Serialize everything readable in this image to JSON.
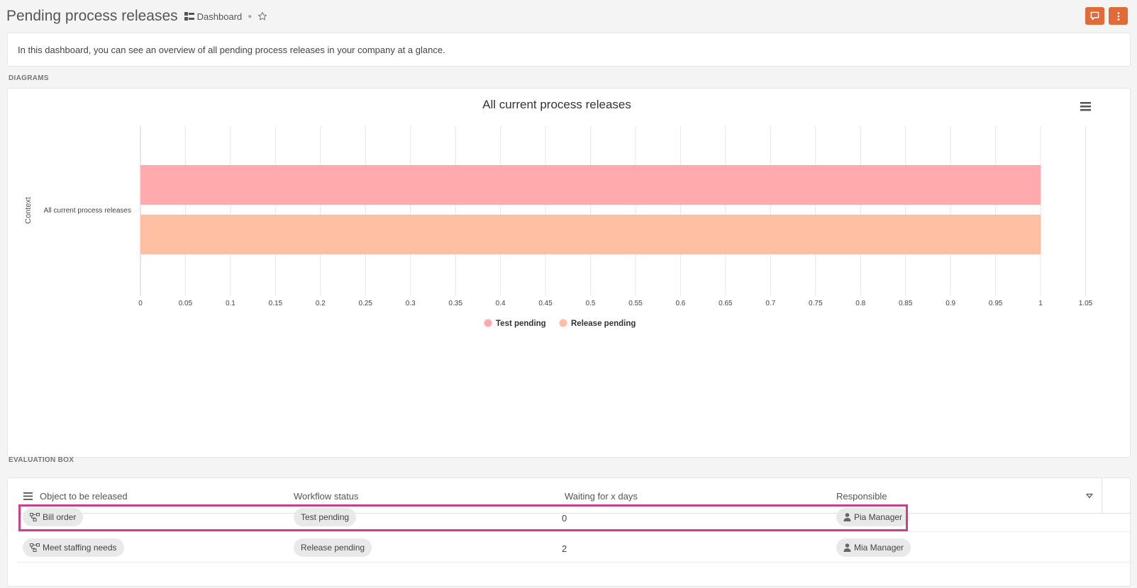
{
  "header": {
    "title": "Pending process releases",
    "breadcrumb_label": "Dashboard"
  },
  "description": "In this dashboard, you can see an overview of all pending process releases in your company at a glance.",
  "sections": {
    "diagrams": "DIAGRAMS",
    "evaluation": "EVALUATION BOX"
  },
  "chart_data": {
    "type": "bar",
    "orientation": "horizontal",
    "title": "All current process releases",
    "categories": [
      "All current process releases"
    ],
    "ylabel": "Context",
    "xlabel": "",
    "xlim": [
      0,
      1.05
    ],
    "x_ticks": [
      "0",
      "0.05",
      "0.1",
      "0.15",
      "0.2",
      "0.25",
      "0.3",
      "0.35",
      "0.4",
      "0.45",
      "0.5",
      "0.55",
      "0.6",
      "0.65",
      "0.7",
      "0.75",
      "0.8",
      "0.85",
      "0.9",
      "0.95",
      "1",
      "1.05"
    ],
    "grid": true,
    "legend_position": "bottom",
    "series": [
      {
        "name": "Test pending",
        "values": [
          1
        ],
        "color": "#ffabad"
      },
      {
        "name": "Release pending",
        "values": [
          1
        ],
        "color": "#ffbfa3"
      }
    ]
  },
  "table": {
    "columns": [
      "Object to be released",
      "Workflow status",
      "Waiting for x days",
      "Responsible"
    ],
    "rows": [
      {
        "object": "Bill order",
        "status": "Test pending",
        "days": "0",
        "responsible": "Pia Manager"
      },
      {
        "object": "Meet staffing needs",
        "status": "Release pending",
        "days": "2",
        "responsible": "Mia Manager"
      }
    ]
  },
  "colors": {
    "accent": "#e06a3a",
    "highlight": "#c8418a"
  }
}
